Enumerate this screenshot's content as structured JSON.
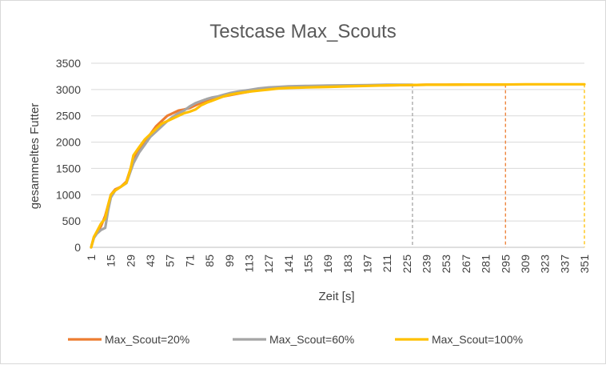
{
  "chart_data": {
    "type": "line",
    "title": "Testcase Max_Scouts",
    "xlabel": "Zeit [s]",
    "ylabel": "gesammeltes Futter",
    "xlim": [
      1,
      351
    ],
    "ylim": [
      0,
      3500
    ],
    "yticks": [
      0,
      500,
      1000,
      1500,
      2000,
      2500,
      3000,
      3500
    ],
    "xticks": [
      1,
      15,
      29,
      43,
      57,
      71,
      85,
      99,
      113,
      127,
      141,
      155,
      169,
      183,
      197,
      211,
      225,
      239,
      253,
      267,
      281,
      295,
      309,
      323,
      337,
      351
    ],
    "grid": "horizontal",
    "legend_position": "bottom",
    "series": [
      {
        "name": "Max_Scout=20%",
        "color": "#ED7D31",
        "end_x": 295,
        "x": [
          1,
          3,
          5,
          8,
          11,
          13,
          15,
          18,
          22,
          26,
          29,
          31,
          35,
          39,
          43,
          47,
          51,
          55,
          59,
          63,
          67,
          71,
          75,
          79,
          83,
          87,
          91,
          95,
          99,
          105,
          113,
          120,
          127,
          134,
          141,
          155,
          169,
          183,
          197,
          211,
          225,
          239,
          253,
          267,
          281,
          295
        ],
        "y": [
          0,
          200,
          280,
          400,
          600,
          800,
          1000,
          1100,
          1150,
          1250,
          1500,
          1700,
          1850,
          2000,
          2150,
          2300,
          2400,
          2500,
          2550,
          2600,
          2620,
          2650,
          2700,
          2750,
          2780,
          2820,
          2850,
          2870,
          2890,
          2920,
          2960,
          3000,
          3030,
          3040,
          3050,
          3060,
          3065,
          3070,
          3075,
          3080,
          3085,
          3090,
          3090,
          3095,
          3095,
          3095
        ]
      },
      {
        "name": "Max_Scout=60%",
        "color": "#A5A5A5",
        "end_x": 229,
        "x": [
          1,
          3,
          5,
          8,
          11,
          13,
          15,
          18,
          22,
          26,
          29,
          31,
          35,
          39,
          43,
          47,
          51,
          55,
          59,
          63,
          67,
          71,
          75,
          79,
          83,
          87,
          91,
          95,
          99,
          105,
          113,
          120,
          127,
          134,
          141,
          155,
          169,
          183,
          197,
          211,
          229
        ],
        "y": [
          0,
          180,
          260,
          330,
          370,
          700,
          950,
          1080,
          1150,
          1220,
          1450,
          1600,
          1800,
          1950,
          2100,
          2200,
          2300,
          2400,
          2480,
          2550,
          2600,
          2680,
          2740,
          2780,
          2820,
          2850,
          2870,
          2900,
          2930,
          2960,
          2990,
          3020,
          3040,
          3050,
          3060,
          3070,
          3075,
          3080,
          3085,
          3090,
          3090
        ]
      },
      {
        "name": "Max_Scout=100%",
        "color": "#FFC000",
        "end_x": 351,
        "x": [
          1,
          3,
          5,
          8,
          11,
          13,
          15,
          18,
          22,
          26,
          29,
          31,
          35,
          39,
          43,
          47,
          51,
          55,
          59,
          63,
          67,
          71,
          75,
          79,
          83,
          87,
          91,
          95,
          99,
          105,
          113,
          120,
          127,
          134,
          141,
          155,
          169,
          183,
          197,
          211,
          225,
          239,
          253,
          267,
          281,
          295,
          309,
          323,
          337,
          351
        ],
        "y": [
          0,
          200,
          300,
          450,
          550,
          800,
          1000,
          1080,
          1150,
          1230,
          1500,
          1750,
          1900,
          2050,
          2150,
          2250,
          2350,
          2400,
          2450,
          2500,
          2550,
          2580,
          2620,
          2700,
          2750,
          2790,
          2830,
          2870,
          2900,
          2930,
          2960,
          2980,
          3000,
          3020,
          3030,
          3040,
          3050,
          3060,
          3070,
          3080,
          3085,
          3090,
          3090,
          3095,
          3095,
          3095,
          3100,
          3100,
          3100,
          3100
        ]
      }
    ]
  }
}
